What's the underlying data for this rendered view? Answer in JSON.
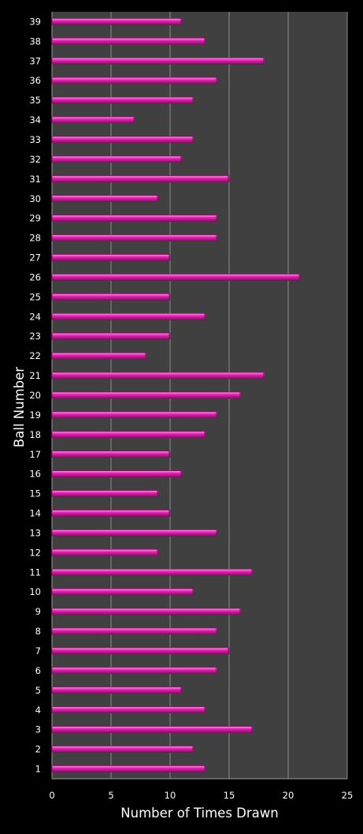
{
  "colors": {
    "background": "#000000",
    "plot_area": "#404040",
    "gridline": "#8c8c8c",
    "bar_fill": "#e61eb4",
    "bar_highlight": "#f79be0",
    "bar_shadow": "#8a0a66",
    "text": "#ffffff"
  },
  "chart_data": {
    "type": "bar",
    "orientation": "horizontal",
    "title": "",
    "xlabel": "Number of Times Drawn",
    "ylabel": "Ball Number",
    "xlim": [
      0,
      25
    ],
    "xticks": [
      0,
      5,
      10,
      15,
      20,
      25
    ],
    "grid": true,
    "legend": "none",
    "categories": [
      "1",
      "2",
      "3",
      "4",
      "5",
      "6",
      "7",
      "8",
      "9",
      "10",
      "11",
      "12",
      "13",
      "14",
      "15",
      "16",
      "17",
      "18",
      "19",
      "20",
      "21",
      "22",
      "23",
      "24",
      "25",
      "26",
      "27",
      "28",
      "29",
      "30",
      "31",
      "32",
      "33",
      "34",
      "35",
      "36",
      "37",
      "38",
      "39"
    ],
    "values": [
      13,
      12,
      17,
      13,
      11,
      14,
      15,
      14,
      16,
      12,
      17,
      9,
      14,
      10,
      9,
      11,
      10,
      13,
      14,
      16,
      18,
      8,
      10,
      13,
      10,
      21,
      10,
      14,
      14,
      9,
      15,
      11,
      12,
      7,
      12,
      14,
      18,
      13,
      11
    ]
  }
}
